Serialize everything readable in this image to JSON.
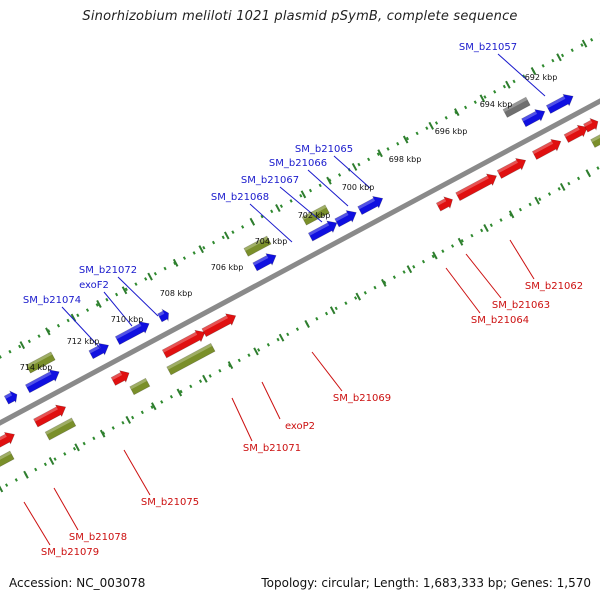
{
  "title": "Sinorhizobium meliloti 1021 plasmid pSymB, complete sequence",
  "accession_text": "Accession: NC_003078",
  "summary_text": "Topology: circular; Length: 1,683,333 bp; Genes: 1,570",
  "colors": {
    "backbone": "#8a8a8a",
    "dots": "#2f8a2f",
    "tick": "#2e7d2e",
    "blue": "#1010e0",
    "red": "#e01010",
    "olive": "#7a8f2a",
    "gray": "#6f6f6f",
    "label_blue": "#1a1acc",
    "label_red": "#cc1010"
  },
  "kbp_labels": [
    "692 kbp",
    "694 kbp",
    "696 kbp",
    "698 kbp",
    "700 kbp",
    "702 kbp",
    "704 kbp",
    "706 kbp",
    "708 kbp",
    "710 kbp",
    "712 kbp",
    "714 kbp"
  ],
  "gene_labels_top": [
    "SM_b21057",
    "SM_b21065",
    "SM_b21066",
    "SM_b21067",
    "SM_b21068",
    "SM_b21072",
    "exoF2",
    "SM_b21074"
  ],
  "gene_labels_bottom": [
    "SM_b21062",
    "SM_b21063",
    "SM_b21064",
    "SM_b21069",
    "exoP2",
    "SM_b21071",
    "SM_b21075",
    "SM_b21078",
    "SM_b21079"
  ]
}
